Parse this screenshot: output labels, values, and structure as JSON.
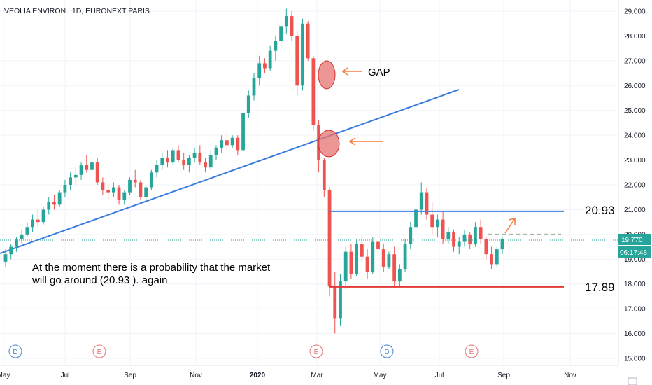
{
  "symbol_header": "VEOLIA ENVIRON., 1D, EURONEXT PARIS",
  "chart_data": {
    "type": "candlestick",
    "title": "VEOLIA ENVIRON., 1D, EURONEXT PARIS",
    "y_ticks": [
      "29.000",
      "28.000",
      "27.000",
      "26.000",
      "25.000",
      "24.000",
      "23.000",
      "22.000",
      "21.000",
      "20.000",
      "19.000",
      "18.000",
      "17.000",
      "16.000",
      "15.000"
    ],
    "ylim": [
      15.0,
      29.3
    ],
    "x_ticks": [
      "May",
      "Jul",
      "Sep",
      "Nov",
      "2020",
      "Mar",
      "May",
      "Jul",
      "Sep",
      "Nov"
    ],
    "x_tick_bold": "2020",
    "last_price": "19.770",
    "countdown": "06:17:48",
    "candles": [
      [
        18.9,
        19.4,
        18.7,
        19.2
      ],
      [
        19.2,
        19.6,
        19.0,
        19.5
      ],
      [
        19.5,
        19.9,
        19.3,
        19.8
      ],
      [
        19.8,
        20.2,
        19.6,
        20.0
      ],
      [
        20.0,
        20.5,
        19.9,
        20.3
      ],
      [
        20.3,
        20.8,
        20.1,
        20.6
      ],
      [
        20.6,
        21.0,
        20.3,
        20.5
      ],
      [
        20.5,
        21.1,
        20.4,
        21.0
      ],
      [
        21.0,
        21.5,
        20.8,
        21.3
      ],
      [
        21.3,
        21.6,
        21.0,
        21.2
      ],
      [
        21.2,
        21.8,
        21.1,
        21.7
      ],
      [
        21.7,
        22.2,
        21.5,
        22.0
      ],
      [
        22.0,
        22.5,
        21.8,
        22.3
      ],
      [
        22.3,
        22.7,
        22.0,
        22.4
      ],
      [
        22.4,
        22.9,
        22.2,
        22.8
      ],
      [
        22.8,
        23.2,
        22.5,
        22.6
      ],
      [
        22.6,
        23.0,
        22.3,
        22.9
      ],
      [
        22.9,
        23.1,
        22.0,
        22.1
      ],
      [
        22.1,
        22.3,
        21.6,
        21.8
      ],
      [
        21.8,
        22.0,
        21.4,
        21.7
      ],
      [
        21.7,
        22.1,
        21.5,
        21.9
      ],
      [
        21.9,
        22.0,
        21.2,
        21.4
      ],
      [
        21.4,
        21.8,
        21.2,
        21.7
      ],
      [
        21.7,
        22.3,
        21.6,
        22.2
      ],
      [
        22.2,
        22.6,
        21.9,
        22.1
      ],
      [
        22.1,
        22.2,
        21.4,
        21.5
      ],
      [
        21.5,
        22.0,
        21.3,
        21.9
      ],
      [
        21.9,
        22.6,
        21.8,
        22.5
      ],
      [
        22.5,
        23.0,
        22.3,
        22.8
      ],
      [
        22.8,
        23.3,
        22.6,
        23.1
      ],
      [
        23.1,
        23.4,
        22.7,
        22.9
      ],
      [
        22.9,
        23.5,
        22.8,
        23.4
      ],
      [
        23.4,
        23.6,
        22.9,
        23.0
      ],
      [
        23.0,
        23.3,
        22.6,
        22.8
      ],
      [
        22.8,
        23.2,
        22.5,
        23.1
      ],
      [
        23.1,
        23.5,
        22.9,
        23.3
      ],
      [
        23.3,
        23.6,
        22.8,
        22.9
      ],
      [
        22.9,
        23.1,
        22.5,
        22.7
      ],
      [
        22.7,
        23.4,
        22.6,
        23.2
      ],
      [
        23.2,
        23.6,
        23.0,
        23.5
      ],
      [
        23.5,
        24.0,
        23.3,
        23.8
      ],
      [
        23.8,
        24.1,
        23.4,
        23.6
      ],
      [
        23.6,
        24.0,
        23.5,
        23.9
      ],
      [
        23.9,
        24.0,
        23.2,
        23.4
      ],
      [
        23.4,
        25.0,
        23.3,
        24.9
      ],
      [
        24.9,
        25.8,
        24.7,
        25.6
      ],
      [
        25.6,
        26.5,
        25.4,
        26.3
      ],
      [
        26.3,
        27.2,
        26.0,
        26.9
      ],
      [
        26.9,
        27.1,
        26.5,
        26.7
      ],
      [
        26.7,
        27.6,
        26.6,
        27.4
      ],
      [
        27.4,
        28.0,
        27.0,
        27.8
      ],
      [
        27.8,
        28.6,
        27.5,
        28.4
      ],
      [
        28.4,
        29.1,
        28.1,
        28.8
      ],
      [
        28.8,
        29.0,
        27.8,
        28.0
      ],
      [
        28.0,
        28.2,
        25.6,
        26.0
      ],
      [
        26.0,
        28.7,
        25.8,
        28.5
      ],
      [
        28.5,
        28.6,
        27.0,
        27.1
      ],
      [
        27.1,
        27.2,
        24.2,
        24.4
      ],
      [
        24.4,
        24.6,
        22.5,
        23.0
      ],
      [
        23.0,
        23.1,
        21.5,
        21.8
      ],
      [
        21.8,
        21.9,
        17.5,
        17.9
      ],
      [
        17.9,
        18.5,
        16.0,
        16.6
      ],
      [
        16.6,
        18.4,
        16.3,
        18.1
      ],
      [
        18.1,
        19.5,
        17.8,
        19.3
      ],
      [
        19.3,
        19.6,
        18.2,
        18.4
      ],
      [
        18.4,
        19.8,
        18.3,
        19.6
      ],
      [
        19.6,
        20.0,
        18.9,
        19.1
      ],
      [
        19.1,
        19.4,
        18.2,
        18.5
      ],
      [
        18.5,
        19.9,
        18.4,
        19.7
      ],
      [
        19.7,
        20.1,
        19.2,
        19.4
      ],
      [
        19.4,
        19.6,
        18.5,
        18.7
      ],
      [
        18.7,
        19.3,
        18.6,
        19.2
      ],
      [
        19.2,
        19.5,
        17.9,
        18.1
      ],
      [
        18.1,
        18.8,
        17.9,
        18.6
      ],
      [
        18.6,
        19.8,
        18.5,
        19.6
      ],
      [
        19.6,
        20.5,
        19.4,
        20.3
      ],
      [
        20.3,
        21.2,
        20.1,
        21.0
      ],
      [
        21.0,
        22.1,
        20.8,
        21.7
      ],
      [
        21.7,
        21.9,
        20.6,
        20.8
      ],
      [
        20.8,
        21.3,
        20.0,
        20.3
      ],
      [
        20.3,
        20.8,
        19.9,
        20.6
      ],
      [
        20.6,
        20.9,
        19.6,
        19.8
      ],
      [
        19.8,
        20.3,
        19.6,
        20.1
      ],
      [
        20.1,
        20.2,
        19.3,
        19.5
      ],
      [
        19.5,
        19.9,
        19.2,
        19.7
      ],
      [
        19.7,
        20.2,
        19.5,
        20.0
      ],
      [
        20.0,
        20.1,
        19.4,
        19.6
      ],
      [
        19.6,
        20.5,
        19.5,
        20.3
      ],
      [
        20.3,
        20.6,
        19.6,
        19.8
      ],
      [
        19.8,
        19.9,
        19.0,
        19.2
      ],
      [
        19.2,
        19.5,
        18.6,
        18.8
      ],
      [
        18.8,
        19.5,
        18.7,
        19.4
      ],
      [
        19.4,
        19.9,
        19.2,
        19.8
      ]
    ],
    "annotations": {
      "gap_label": "GAP",
      "note_line1": "At the moment there is a probability that the market",
      "note_line2": "will go around (20.93 ).  again",
      "resistance_label": "20.93",
      "support_label": "17.89"
    },
    "levels": {
      "resistance": 20.93,
      "support": 17.89,
      "current": 19.77,
      "dashed_target": 20.0
    },
    "trendline": {
      "from": [
        "May",
        19.1
      ],
      "to": [
        "Aug",
        25.8
      ]
    },
    "event_markers": [
      {
        "letter": "D"
      },
      {
        "letter": "E"
      },
      {
        "letter": "E"
      },
      {
        "letter": "D"
      },
      {
        "letter": "E"
      }
    ]
  },
  "colors": {
    "up": "#26a69a",
    "down": "#ef5350",
    "trendline": "#3b7ddd",
    "resistance": "#3b7ddd",
    "support": "#e53935",
    "price_tag": "#26a69a",
    "countdown_tag": "#26a69a",
    "gap_circle": "#e57373",
    "arrow": "#f57c3c",
    "dividend": "#4a7fd1",
    "earnings": "#e57373"
  }
}
